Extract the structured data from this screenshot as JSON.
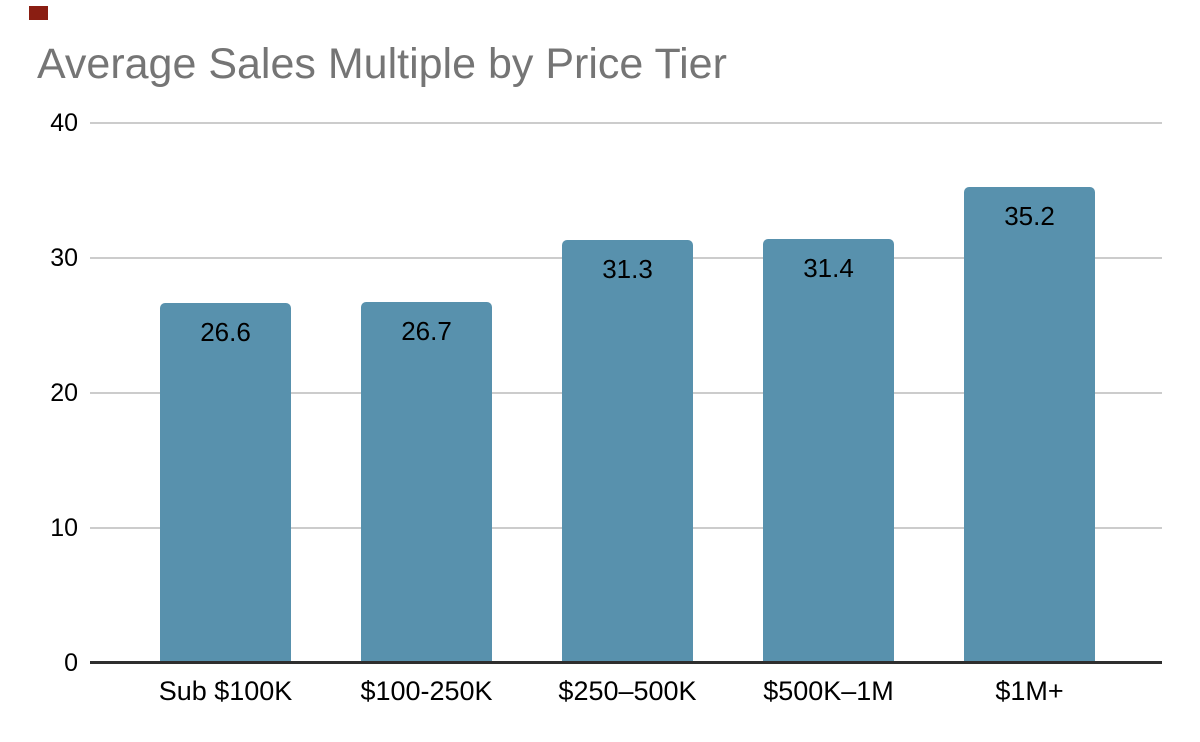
{
  "marker": {
    "color": "#8a1e12"
  },
  "chart_data": {
    "type": "bar",
    "title": "Average Sales Multiple by Price Tier",
    "categories": [
      "Sub $100K",
      "$100-250K",
      "$250–500K",
      "$500K–1M",
      "$1M+"
    ],
    "values": [
      26.6,
      26.7,
      31.3,
      31.4,
      35.2
    ],
    "value_labels": [
      "26.6",
      "26.7",
      "31.3",
      "31.4",
      "35.2"
    ],
    "yticks": [
      0,
      10,
      20,
      30,
      40
    ],
    "ytick_labels": [
      "0",
      "10",
      "20",
      "30",
      "40"
    ],
    "ylim": [
      0,
      40
    ],
    "xlabel": "",
    "ylabel": "",
    "legend": "none",
    "grid": "horizontal",
    "value_label_position": "inside-top",
    "colors": {
      "bar": "#5891ad",
      "title": "#757575",
      "gridline": "#cccccc",
      "axis_line": "#2e2e2e",
      "label_text": "#000000",
      "background": "#ffffff"
    }
  }
}
